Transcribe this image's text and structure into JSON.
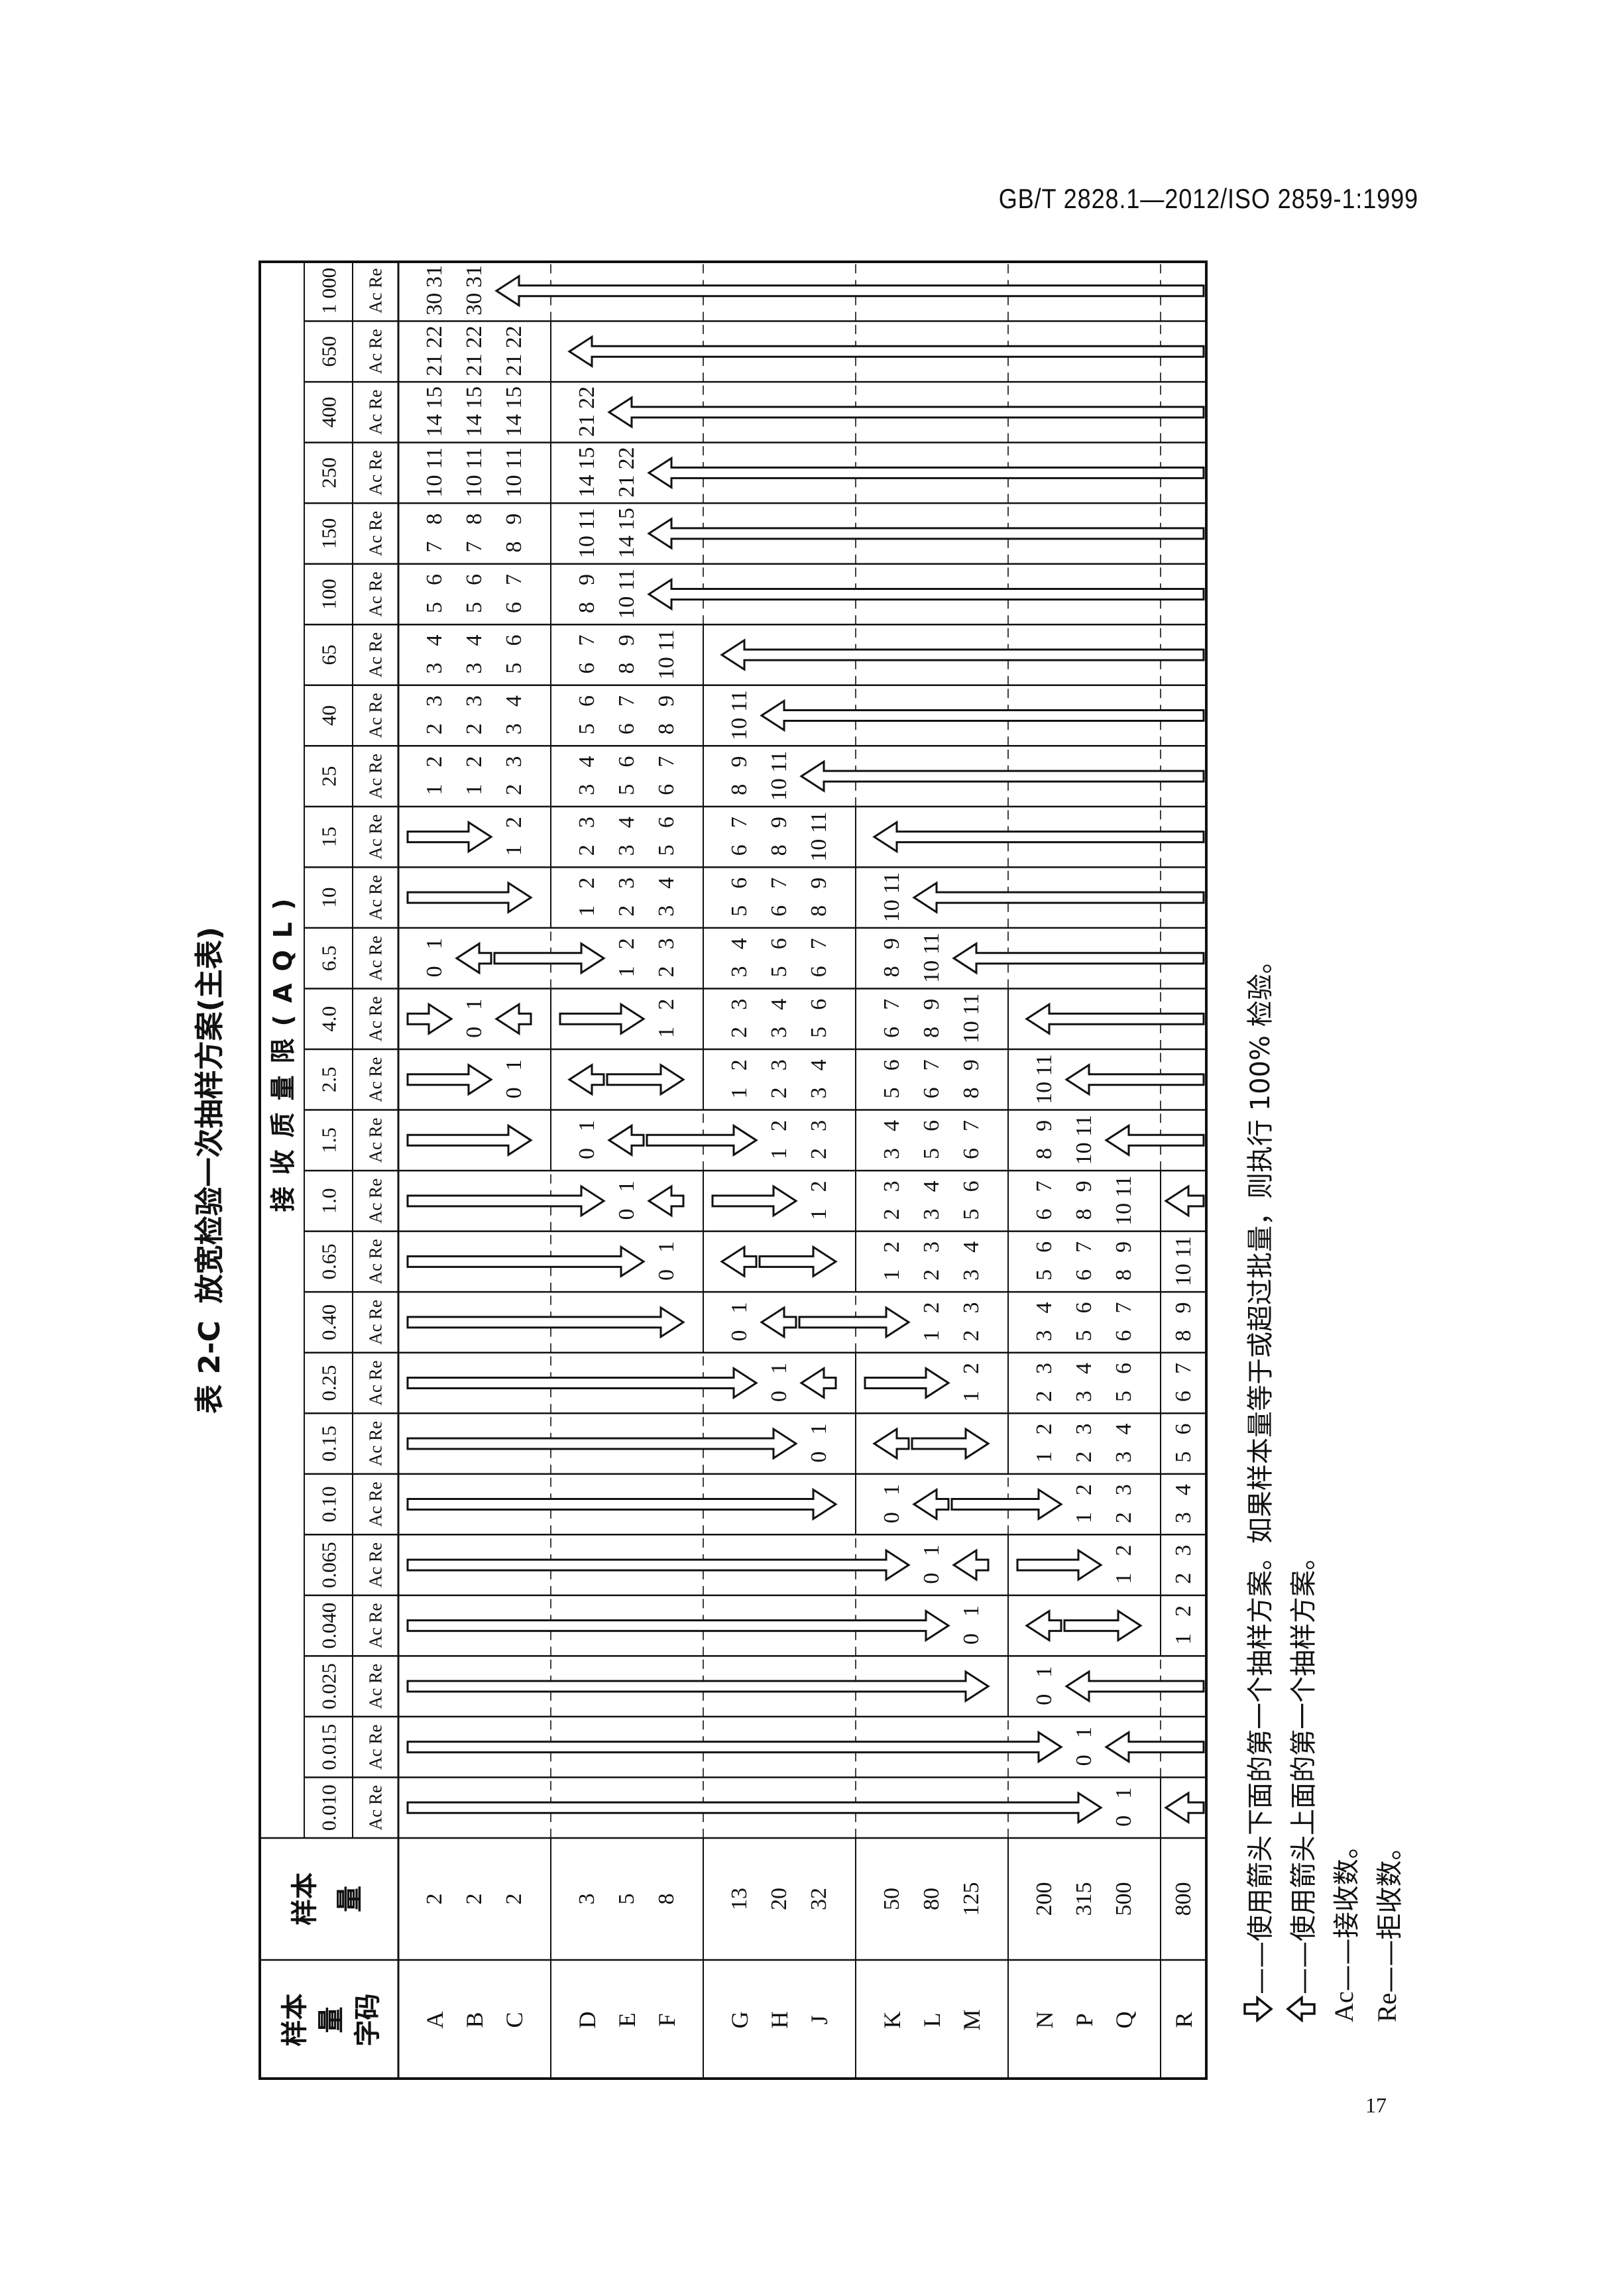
{
  "page_header": "GB/T 2828.1—2012/ISO 2859-1:1999",
  "page_number": "17",
  "title": {
    "number": "表 2-C",
    "text": "放宽检验一次抽样方案(主表)"
  },
  "header": {
    "code_col_lines": [
      "样本",
      "量",
      "字码"
    ],
    "size_col_lines": [
      "样本",
      "量"
    ],
    "aql_title": "接收质量限(AQL)",
    "ac_re": "Ac Re"
  },
  "codes": [
    "A",
    "B",
    "C",
    "D",
    "E",
    "F",
    "G",
    "H",
    "J",
    "K",
    "L",
    "M",
    "N",
    "P",
    "Q",
    "R"
  ],
  "sample_sizes": [
    "2",
    "2",
    "2",
    "3",
    "5",
    "8",
    "13",
    "20",
    "32",
    "50",
    "80",
    "125",
    "200",
    "315",
    "500",
    "800"
  ],
  "aql_columns": [
    {
      "aql": "0.010",
      "cells": [
        "down",
        "down",
        "down",
        "down",
        "down",
        "down",
        "down",
        "down",
        "down",
        "down",
        "down",
        "down",
        "down",
        "down",
        [
          0,
          1
        ],
        "up"
      ]
    },
    {
      "aql": "0.015",
      "cells": [
        "down",
        "down",
        "down",
        "down",
        "down",
        "down",
        "down",
        "down",
        "down",
        "down",
        "down",
        "down",
        "down",
        [
          0,
          1
        ],
        "up",
        "up"
      ]
    },
    {
      "aql": "0.025",
      "cells": [
        "down",
        "down",
        "down",
        "down",
        "down",
        "down",
        "down",
        "down",
        "down",
        "down",
        "down",
        "down",
        [
          0,
          1
        ],
        "up",
        "up",
        "up"
      ]
    },
    {
      "aql": "0.040",
      "cells": [
        "down",
        "down",
        "down",
        "down",
        "down",
        "down",
        "down",
        "down",
        "down",
        "down",
        "down",
        [
          0,
          1
        ],
        "up",
        "down",
        "down",
        [
          1,
          2
        ]
      ]
    },
    {
      "aql": "0.065",
      "cells": [
        "down",
        "down",
        "down",
        "down",
        "down",
        "down",
        "down",
        "down",
        "down",
        "down",
        [
          0,
          1
        ],
        "up",
        "down",
        "down",
        [
          1,
          2
        ],
        [
          2,
          3
        ]
      ]
    },
    {
      "aql": "0.10",
      "cells": [
        "down",
        "down",
        "down",
        "down",
        "down",
        "down",
        "down",
        "down",
        "down",
        [
          0,
          1
        ],
        "up",
        "down",
        "down",
        [
          1,
          2
        ],
        [
          2,
          3
        ],
        [
          3,
          4
        ]
      ]
    },
    {
      "aql": "0.15",
      "cells": [
        "down",
        "down",
        "down",
        "down",
        "down",
        "down",
        "down",
        "down",
        [
          0,
          1
        ],
        "up",
        "down",
        "down",
        [
          1,
          2
        ],
        [
          2,
          3
        ],
        [
          3,
          4
        ],
        [
          5,
          6
        ]
      ]
    },
    {
      "aql": "0.25",
      "cells": [
        "down",
        "down",
        "down",
        "down",
        "down",
        "down",
        "down",
        [
          0,
          1
        ],
        "up",
        "down",
        "down",
        [
          1,
          2
        ],
        [
          2,
          3
        ],
        [
          3,
          4
        ],
        [
          5,
          6
        ],
        [
          6,
          7
        ]
      ]
    },
    {
      "aql": "0.40",
      "cells": [
        "down",
        "down",
        "down",
        "down",
        "down",
        "down",
        [
          0,
          1
        ],
        "up",
        "down",
        "down",
        [
          1,
          2
        ],
        [
          2,
          3
        ],
        [
          3,
          4
        ],
        [
          5,
          6
        ],
        [
          6,
          7
        ],
        [
          8,
          9
        ]
      ]
    },
    {
      "aql": "0.65",
      "cells": [
        "down",
        "down",
        "down",
        "down",
        "down",
        [
          0,
          1
        ],
        "up",
        "down",
        "down",
        [
          1,
          2
        ],
        [
          2,
          3
        ],
        [
          3,
          4
        ],
        [
          5,
          6
        ],
        [
          6,
          7
        ],
        [
          8,
          9
        ],
        [
          10,
          11
        ]
      ]
    },
    {
      "aql": "1.0",
      "cells": [
        "down",
        "down",
        "down",
        "down",
        [
          0,
          1
        ],
        "up",
        "down",
        "down",
        [
          1,
          2
        ],
        [
          2,
          3
        ],
        [
          3,
          4
        ],
        [
          5,
          6
        ],
        [
          6,
          7
        ],
        [
          8,
          9
        ],
        [
          10,
          11
        ],
        "up"
      ]
    },
    {
      "aql": "1.5",
      "cells": [
        "down",
        "down",
        "down",
        [
          0,
          1
        ],
        "up",
        "down",
        "down",
        [
          1,
          2
        ],
        [
          2,
          3
        ],
        [
          3,
          4
        ],
        [
          5,
          6
        ],
        [
          6,
          7
        ],
        [
          8,
          9
        ],
        [
          10,
          11
        ],
        "up",
        "up"
      ]
    },
    {
      "aql": "2.5",
      "cells": [
        "down",
        "down",
        [
          0,
          1
        ],
        "up",
        "down",
        "down",
        [
          1,
          2
        ],
        [
          2,
          3
        ],
        [
          3,
          4
        ],
        [
          5,
          6
        ],
        [
          6,
          7
        ],
        [
          8,
          9
        ],
        [
          10,
          11
        ],
        "up",
        "up",
        "up"
      ]
    },
    {
      "aql": "4.0",
      "cells": [
        "down",
        [
          0,
          1
        ],
        "up",
        "down",
        "down",
        [
          1,
          2
        ],
        [
          2,
          3
        ],
        [
          3,
          4
        ],
        [
          5,
          6
        ],
        [
          6,
          7
        ],
        [
          8,
          9
        ],
        [
          10,
          11
        ],
        "up",
        "up",
        "up",
        "up"
      ]
    },
    {
      "aql": "6.5",
      "cells": [
        [
          0,
          1
        ],
        "up",
        "down",
        "down",
        [
          1,
          2
        ],
        [
          2,
          3
        ],
        [
          3,
          4
        ],
        [
          5,
          6
        ],
        [
          6,
          7
        ],
        [
          8,
          9
        ],
        [
          10,
          11
        ],
        "up",
        "up",
        "up",
        "up",
        "up"
      ]
    },
    {
      "aql": "10",
      "cells": [
        "down",
        "down",
        "down",
        [
          1,
          2
        ],
        [
          2,
          3
        ],
        [
          3,
          4
        ],
        [
          5,
          6
        ],
        [
          6,
          7
        ],
        [
          8,
          9
        ],
        [
          10,
          11
        ],
        "up",
        "up",
        "up",
        "up",
        "up",
        "up"
      ]
    },
    {
      "aql": "15",
      "cells": [
        "down",
        "down",
        [
          1,
          2
        ],
        [
          2,
          3
        ],
        [
          3,
          4
        ],
        [
          5,
          6
        ],
        [
          6,
          7
        ],
        [
          8,
          9
        ],
        [
          10,
          11
        ],
        "up",
        "up",
        "up",
        "up",
        "up",
        "up",
        "up"
      ]
    },
    {
      "aql": "25",
      "cells": [
        [
          1,
          2
        ],
        [
          1,
          2
        ],
        [
          2,
          3
        ],
        [
          3,
          4
        ],
        [
          5,
          6
        ],
        [
          6,
          7
        ],
        [
          8,
          9
        ],
        [
          10,
          11
        ],
        "up",
        "up",
        "up",
        "up",
        "up",
        "up",
        "up",
        "up"
      ]
    },
    {
      "aql": "40",
      "cells": [
        [
          2,
          3
        ],
        [
          2,
          3
        ],
        [
          3,
          4
        ],
        [
          5,
          6
        ],
        [
          6,
          7
        ],
        [
          8,
          9
        ],
        [
          10,
          11
        ],
        "up",
        "up",
        "up",
        "up",
        "up",
        "up",
        "up",
        "up",
        "up"
      ]
    },
    {
      "aql": "65",
      "cells": [
        [
          3,
          4
        ],
        [
          3,
          4
        ],
        [
          5,
          6
        ],
        [
          6,
          7
        ],
        [
          8,
          9
        ],
        [
          10,
          11
        ],
        "up",
        "up",
        "up",
        "up",
        "up",
        "up",
        "up",
        "up",
        "up",
        "up"
      ]
    },
    {
      "aql": "100",
      "cells": [
        [
          5,
          6
        ],
        [
          5,
          6
        ],
        [
          6,
          7
        ],
        [
          8,
          9
        ],
        [
          10,
          11
        ],
        "up",
        "up",
        "up",
        "up",
        "up",
        "up",
        "up",
        "up",
        "up",
        "up",
        "up"
      ]
    },
    {
      "aql": "150",
      "cells": [
        [
          7,
          8
        ],
        [
          7,
          8
        ],
        [
          8,
          9
        ],
        [
          10,
          11
        ],
        [
          14,
          15
        ],
        "up",
        "up",
        "up",
        "up",
        "up",
        "up",
        "up",
        "up",
        "up",
        "up",
        "up"
      ]
    },
    {
      "aql": "250",
      "cells": [
        [
          10,
          11
        ],
        [
          10,
          11
        ],
        [
          10,
          11
        ],
        [
          14,
          15
        ],
        [
          21,
          22
        ],
        "up",
        "up",
        "up",
        "up",
        "up",
        "up",
        "up",
        "up",
        "up",
        "up",
        "up"
      ]
    },
    {
      "aql": "400",
      "cells": [
        [
          14,
          15
        ],
        [
          14,
          15
        ],
        [
          14,
          15
        ],
        [
          21,
          22
        ],
        "up",
        "up",
        "up",
        "up",
        "up",
        "up",
        "up",
        "up",
        "up",
        "up",
        "up",
        "up"
      ]
    },
    {
      "aql": "650",
      "cells": [
        [
          21,
          22
        ],
        [
          21,
          22
        ],
        [
          21,
          22
        ],
        "up",
        "up",
        "up",
        "up",
        "up",
        "up",
        "up",
        "up",
        "up",
        "up",
        "up",
        "up",
        "up"
      ]
    },
    {
      "aql": "1 000",
      "cells": [
        [
          30,
          31
        ],
        [
          30,
          31
        ],
        "up",
        "up",
        "up",
        "up",
        "up",
        "up",
        "up",
        "up",
        "up",
        "up",
        "up",
        "up",
        "up",
        "up"
      ]
    }
  ],
  "notes": [
    {
      "icon": "down-arrow",
      "label": "",
      "text": "——使用箭头下面的第一个抽样方案。如果样本量等于或超过批量，则执行 100% 检验。"
    },
    {
      "icon": "up-arrow",
      "label": "",
      "text": "——使用箭头上面的第一个抽样方案。"
    },
    {
      "icon": "",
      "label": "Ac",
      "text": "——接收数。"
    },
    {
      "icon": "",
      "label": "Re",
      "text": "——拒收数。"
    }
  ]
}
